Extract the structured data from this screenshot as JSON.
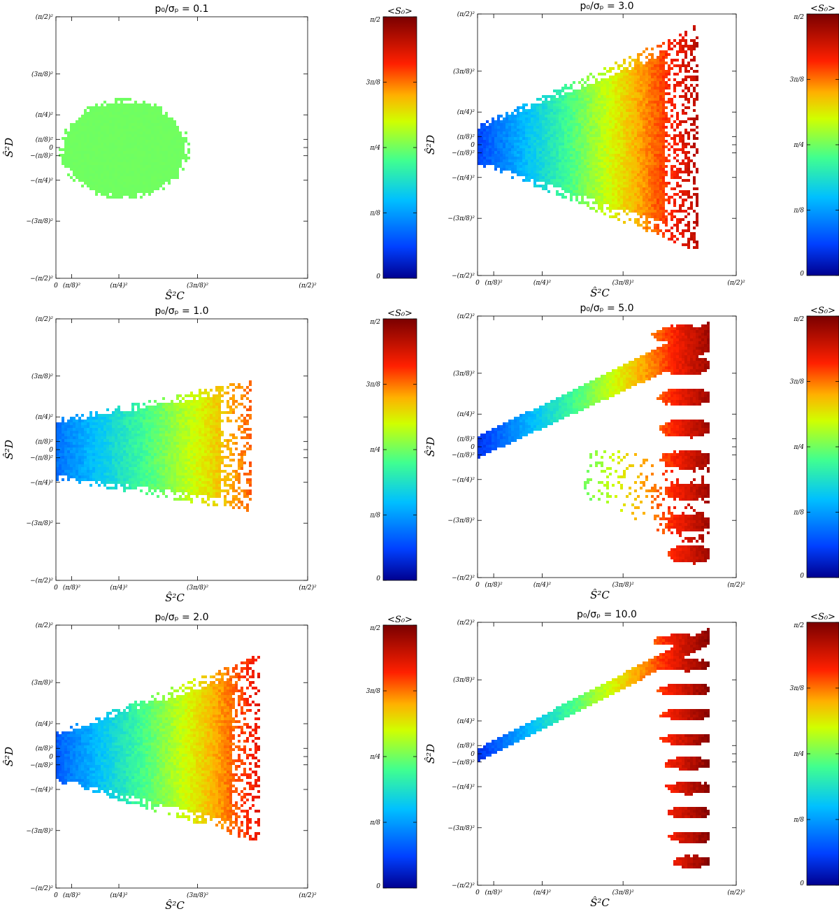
{
  "chart_data": [
    {
      "type": "heatmap",
      "title": "p₀/σₚ = 0.1",
      "xlabel": "Ŝ²C",
      "ylabel": "Ŝ²D",
      "x_ticks": [
        "0",
        "(π/8)²",
        "(π/4)²",
        "(3π/8)²",
        "(π/2)²"
      ],
      "y_ticks": [
        "(π/2)²",
        "(3π/8)²",
        "(π/4)²",
        "(π/8)²",
        "0",
        "−(π/8)²",
        "−(π/4)²",
        "−(3π/8)²",
        "−(π/2)²"
      ],
      "colorbar": {
        "title": "<S₀>",
        "ticks": [
          "π/2",
          "3π/8",
          "π/4",
          "π/8",
          "0"
        ],
        "range": [
          "0",
          "π/2"
        ]
      },
      "shape": "ellipse",
      "xlim": [
        0,
        2.467
      ],
      "ylim": [
        -2.467,
        2.467
      ],
      "x_extent": [
        0.01,
        1.3
      ],
      "y_extent": [
        -0.95,
        0.95
      ],
      "color_min": 0.78,
      "color_max": 0.79
    },
    {
      "type": "heatmap",
      "title": "p₀/σₚ = 3.0",
      "xlabel": "Ŝ²C",
      "ylabel": "Ŝ²D",
      "x_ticks": [
        "0",
        "(π/8)²",
        "(π/4)²",
        "(3π/8)²",
        "(π/2)²"
      ],
      "y_ticks": [
        "(π/2)²",
        "(3π/8)²",
        "(π/4)²",
        "(π/8)²",
        "0",
        "−(π/8)²",
        "−(π/4)²",
        "−(3π/8)²",
        "−(π/2)²"
      ],
      "colorbar": {
        "title": "<S₀>",
        "ticks": [
          "π/2",
          "3π/8",
          "π/4",
          "π/8",
          "0"
        ],
        "range": [
          "0",
          "π/2"
        ]
      },
      "shape": "wedge",
      "xlim": [
        0,
        2.467
      ],
      "ylim": [
        -2.467,
        2.467
      ],
      "x_extent": [
        0.0,
        2.1
      ],
      "y_left": [
        -0.35,
        0.4
      ],
      "y_right": [
        -2.0,
        2.3
      ],
      "color_min": 0.2,
      "color_max": 1.45
    },
    {
      "type": "heatmap",
      "title": "p₀/σₚ = 1.0",
      "xlabel": "Ŝ²C",
      "ylabel": "Ŝ²D",
      "x_ticks": [
        "0",
        "(π/8)²",
        "(π/4)²",
        "(3π/8)²",
        "(π/2)²"
      ],
      "y_ticks": [
        "(π/2)²",
        "(3π/8)²",
        "(π/4)²",
        "(π/8)²",
        "0",
        "−(π/8)²",
        "−(π/4)²",
        "−(3π/8)²",
        "−(π/2)²"
      ],
      "colorbar": {
        "title": "<S₀>",
        "ticks": [
          "π/2",
          "3π/8",
          "π/4",
          "π/8",
          "0"
        ],
        "range": [
          "0",
          "π/2"
        ]
      },
      "shape": "wedge",
      "xlim": [
        0,
        2.467
      ],
      "ylim": [
        -2.467,
        2.467
      ],
      "x_extent": [
        0.0,
        1.9
      ],
      "y_left": [
        -0.55,
        0.6
      ],
      "y_right": [
        -1.15,
        1.35
      ],
      "color_min": 0.3,
      "color_max": 1.2
    },
    {
      "type": "heatmap",
      "title": "p₀/σₚ = 5.0",
      "xlabel": "Ŝ²C",
      "ylabel": "Ŝ²D",
      "x_ticks": [
        "0",
        "(π/8)²",
        "(π/4)²",
        "(3π/8)²",
        "(π/2)²"
      ],
      "y_ticks": [
        "(π/2)²",
        "(3π/8)²",
        "(π/4)²",
        "(π/8)²",
        "0",
        "−(π/8)²",
        "−(π/4)²",
        "−(3π/8)²",
        "−(π/2)²"
      ],
      "colorbar": {
        "title": "<S₀>",
        "ticks": [
          "π/2",
          "3π/8",
          "π/4",
          "π/8",
          "0"
        ],
        "range": [
          "0",
          "π/2"
        ]
      },
      "shape": "lobes",
      "xlim": [
        0,
        2.467
      ],
      "ylim": [
        -2.467,
        2.467
      ],
      "x_extent": [
        0.0,
        2.2
      ],
      "band_left": [
        -0.1,
        0.15
      ],
      "band_right": [
        1.9,
        2.3
      ],
      "lobe_count": 8,
      "color_min": 0.15,
      "color_max": 1.5
    },
    {
      "type": "heatmap",
      "title": "p₀/σₚ = 2.0",
      "xlabel": "Ŝ²C",
      "ylabel": "Ŝ²D",
      "x_ticks": [
        "0",
        "(π/8)²",
        "(π/4)²",
        "(3π/8)²",
        "(π/2)²"
      ],
      "y_ticks": [
        "(π/2)²",
        "(3π/8)²",
        "(π/4)²",
        "(π/8)²",
        "0",
        "−(π/8)²",
        "−(π/4)²",
        "−(3π/8)²",
        "−(π/2)²"
      ],
      "colorbar": {
        "title": "<S₀>",
        "ticks": [
          "π/2",
          "3π/8",
          "π/4",
          "π/8",
          "0"
        ],
        "range": [
          "0",
          "π/2"
        ]
      },
      "shape": "wedge",
      "xlim": [
        0,
        2.467
      ],
      "ylim": [
        -2.467,
        2.467
      ],
      "x_extent": [
        0.0,
        2.0
      ],
      "y_left": [
        -0.45,
        0.5
      ],
      "y_right": [
        -1.6,
        1.95
      ],
      "color_min": 0.25,
      "color_max": 1.35
    },
    {
      "type": "heatmap",
      "title": "p₀/σₚ = 10.0",
      "xlabel": "Ŝ²C",
      "ylabel": "Ŝ²D",
      "x_ticks": [
        "0",
        "(π/8)²",
        "(π/4)²",
        "(3π/8)²",
        "(π/2)²"
      ],
      "y_ticks": [
        "(π/2)²",
        "(3π/8)²",
        "(π/4)²",
        "(π/8)²",
        "0",
        "−(π/8)²",
        "−(π/4)²",
        "−(3π/8)²",
        "−(π/2)²"
      ],
      "colorbar": {
        "title": "<S₀>",
        "ticks": [
          "π/2",
          "3π/8",
          "π/4",
          "π/8",
          "0"
        ],
        "range": [
          "0",
          "π/2"
        ]
      },
      "shape": "lobes",
      "xlim": [
        0,
        2.467
      ],
      "ylim": [
        -2.467,
        2.467
      ],
      "x_extent": [
        0.0,
        2.2
      ],
      "band_left": [
        -0.05,
        0.05
      ],
      "band_right": [
        2.15,
        2.3
      ],
      "lobe_count": 10,
      "color_min": 0.15,
      "color_max": 1.55
    }
  ]
}
